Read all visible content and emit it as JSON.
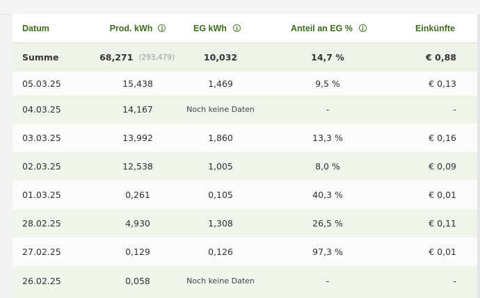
{
  "header": {
    "datum": "Datum",
    "prod": "Prod. kWh",
    "eg": "EG kWh",
    "anteil": "Anteil an EG %",
    "einkuenfte": "Einkünfte",
    "info_icon": "info-circle-icon"
  },
  "summary": {
    "label": "Summe",
    "prod": "68,271",
    "prod_total": "(293,479)",
    "eg": "10,032",
    "anteil": "14,7 %",
    "einkuenfte": "€ 0,88"
  },
  "rows": [
    {
      "datum": "05.03.25",
      "prod": "15,438",
      "eg": "1,469",
      "anteil": "9,5 %",
      "einkuenfte": "€ 0,13"
    },
    {
      "datum": "04.03.25",
      "prod": "14,167",
      "eg": "Noch keine Daten",
      "anteil": "-",
      "einkuenfte": "-"
    },
    {
      "datum": "03.03.25",
      "prod": "13,992",
      "eg": "1,860",
      "anteil": "13,3 %",
      "einkuenfte": "€ 0,16"
    },
    {
      "datum": "02.03.25",
      "prod": "12,538",
      "eg": "1,005",
      "anteil": "8,0 %",
      "einkuenfte": "€ 0,09"
    },
    {
      "datum": "01.03.25",
      "prod": "0,261",
      "eg": "0,105",
      "anteil": "40,3 %",
      "einkuenfte": "€ 0,01"
    },
    {
      "datum": "28.02.25",
      "prod": "4,930",
      "eg": "1,308",
      "anteil": "26,5 %",
      "einkuenfte": "€ 0,11"
    },
    {
      "datum": "27.02.25",
      "prod": "0,129",
      "eg": "0,126",
      "anteil": "97,3 %",
      "einkuenfte": "€ 0,01"
    },
    {
      "datum": "26.02.25",
      "prod": "0,058",
      "eg": "Noch keine Daten",
      "anteil": "-",
      "einkuenfte": "-"
    }
  ]
}
